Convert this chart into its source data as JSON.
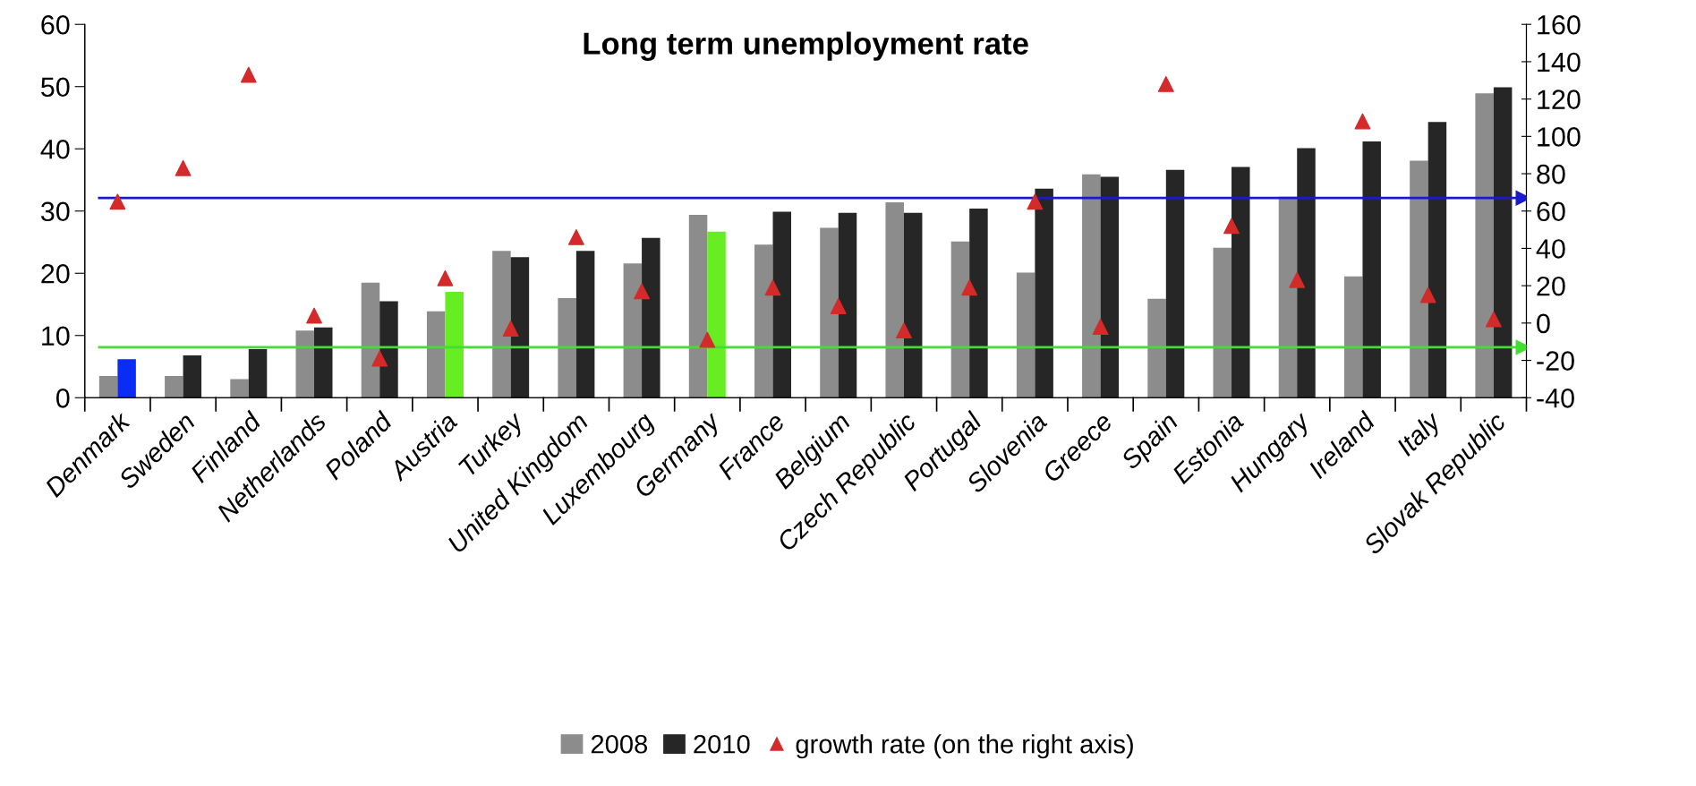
{
  "chart_data": {
    "type": "bar",
    "title": "Long term unemployment rate",
    "categories": [
      "Denmark",
      "Sweden",
      "Finland",
      "Netherlands",
      "Poland",
      "Austria",
      "Turkey",
      "United Kingdom",
      "Luxembourg",
      "Germany",
      "France",
      "Belgium",
      "Czech Republic",
      "Portugal",
      "Slovenia",
      "Greece",
      "Spain",
      "Estonia",
      "Hungary",
      "Ireland",
      "Italy",
      "Slovak Republic"
    ],
    "series": [
      {
        "name": "2008",
        "color": "#8c8c8c",
        "values": [
          3.5,
          3.5,
          3.0,
          10.8,
          18.5,
          13.9,
          23.6,
          16.0,
          21.6,
          29.4,
          24.6,
          27.3,
          31.4,
          25.1,
          20.1,
          35.9,
          15.9,
          24.1,
          32.3,
          19.5,
          38.1,
          48.9
        ]
      },
      {
        "name": "2010",
        "color": "#262626",
        "colors": [
          "#0a2cf5",
          "#262626",
          "#262626",
          "#262626",
          "#262626",
          "#66ee22",
          "#262626",
          "#262626",
          "#262626",
          "#66ee22",
          "#262626",
          "#262626",
          "#262626",
          "#262626",
          "#262626",
          "#262626",
          "#262626",
          "#262626",
          "#262626",
          "#262626",
          "#262626",
          "#262626"
        ],
        "values": [
          6.2,
          6.8,
          7.8,
          11.3,
          15.5,
          17.0,
          22.6,
          23.6,
          25.7,
          26.7,
          29.9,
          29.7,
          29.7,
          30.4,
          33.6,
          35.5,
          36.6,
          37.1,
          40.1,
          41.2,
          44.3,
          49.9
        ]
      },
      {
        "name": "growth rate (on the right axis)",
        "type": "scatter",
        "axis": "y2",
        "marker": "triangle",
        "color": "#d42a2a",
        "values": [
          65,
          83,
          133,
          4,
          -19,
          24,
          -3,
          46,
          17,
          -9,
          19,
          9,
          -4,
          19,
          65,
          -2,
          128,
          52,
          23,
          108,
          15,
          2
        ]
      }
    ],
    "ylim": [
      0,
      60
    ],
    "yticks": [
      0,
      10,
      20,
      30,
      40,
      50,
      60
    ],
    "y2lim": [
      -40,
      160
    ],
    "y2ticks": [
      -40,
      -20,
      0,
      20,
      40,
      60,
      80,
      100,
      120,
      140,
      160
    ],
    "ref_lines": [
      {
        "axis": "y2",
        "value": 67,
        "color": "#1a1acc"
      },
      {
        "axis": "y2",
        "value": -13,
        "color": "#44dd33"
      }
    ],
    "grid": false,
    "legend": "bottom"
  }
}
